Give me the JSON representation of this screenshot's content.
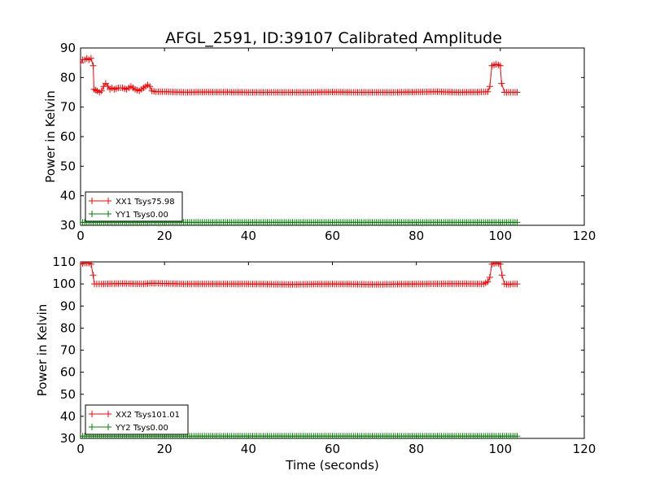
{
  "figure": {
    "title": "AFGL_2591, ID:39107 Calibrated Amplitude"
  },
  "chart_data": [
    {
      "type": "line",
      "title": "AFGL_2591, ID:39107 Calibrated Amplitude",
      "xlabel": "",
      "ylabel": "Power in Kelvin",
      "xlim": [
        0,
        120
      ],
      "ylim": [
        30,
        90
      ],
      "xticks": [
        "0",
        "20",
        "40",
        "60",
        "80",
        "100",
        "120"
      ],
      "yticks": [
        "30",
        "40",
        "50",
        "60",
        "70",
        "80",
        "90"
      ],
      "grid": false,
      "legend_position": "bottom-left",
      "series": [
        {
          "name": "XX1 Tsys75.98",
          "color": "#ff0000",
          "marker": "plus",
          "points": [
            [
              0,
              85
            ],
            [
              0.5,
              86
            ],
            [
              1,
              86
            ],
            [
              1.5,
              86.5
            ],
            [
              2,
              86
            ],
            [
              2.5,
              86.5
            ],
            [
              3,
              84
            ],
            [
              3.2,
              76
            ],
            [
              4,
              75.5
            ],
            [
              4.5,
              75
            ],
            [
              5,
              75.5
            ],
            [
              5.5,
              77
            ],
            [
              6,
              78
            ],
            [
              6.5,
              77
            ],
            [
              7,
              76
            ],
            [
              7.5,
              76.5
            ],
            [
              8,
              76
            ],
            [
              9,
              76.5
            ],
            [
              10,
              76.5
            ],
            [
              11,
              76
            ],
            [
              12,
              77
            ],
            [
              13,
              76
            ],
            [
              14,
              75.5
            ],
            [
              15,
              76.5
            ],
            [
              16,
              77.5
            ],
            [
              16.5,
              77
            ],
            [
              17,
              75.5
            ],
            [
              18,
              75.2
            ],
            [
              20,
              75.2
            ],
            [
              25,
              75
            ],
            [
              30,
              75.1
            ],
            [
              40,
              75
            ],
            [
              50,
              75
            ],
            [
              55,
              75
            ],
            [
              60,
              75.1
            ],
            [
              65,
              75
            ],
            [
              70,
              75
            ],
            [
              75,
              75
            ],
            [
              80,
              75.1
            ],
            [
              85,
              75.2
            ],
            [
              90,
              75
            ],
            [
              95,
              75.1
            ],
            [
              97,
              75.2
            ],
            [
              97.5,
              77
            ],
            [
              98,
              84
            ],
            [
              99,
              84.5
            ],
            [
              100,
              84
            ],
            [
              100.3,
              78
            ],
            [
              101,
              75
            ],
            [
              102,
              75
            ],
            [
              103,
              75
            ],
            [
              104,
              75
            ]
          ]
        },
        {
          "name": "YY1 Tsys0.00",
          "color": "#008000",
          "marker": "plus",
          "points": [
            [
              0,
              31
            ],
            [
              10,
              31
            ],
            [
              20,
              31
            ],
            [
              30,
              31
            ],
            [
              40,
              31
            ],
            [
              50,
              31
            ],
            [
              60,
              31
            ],
            [
              70,
              31
            ],
            [
              80,
              31
            ],
            [
              90,
              31
            ],
            [
              100,
              31
            ],
            [
              104,
              31
            ]
          ]
        }
      ]
    },
    {
      "type": "line",
      "title": "",
      "xlabel": "Time (seconds)",
      "ylabel": "Power in Kelvin",
      "xlim": [
        0,
        120
      ],
      "ylim": [
        30,
        110
      ],
      "xticks": [
        "0",
        "20",
        "40",
        "60",
        "80",
        "100",
        "120"
      ],
      "yticks": [
        "30",
        "40",
        "50",
        "60",
        "70",
        "80",
        "90",
        "100",
        "110"
      ],
      "grid": false,
      "legend_position": "bottom-left",
      "series": [
        {
          "name": "XX2 Tsys101.01",
          "color": "#ff0000",
          "marker": "plus",
          "points": [
            [
              0,
              109
            ],
            [
              1,
              109.5
            ],
            [
              2,
              109.5
            ],
            [
              2.5,
              109
            ],
            [
              3,
              104
            ],
            [
              3.3,
              100
            ],
            [
              5,
              100
            ],
            [
              10,
              100.2
            ],
            [
              15,
              100
            ],
            [
              17,
              100.3
            ],
            [
              20,
              100.2
            ],
            [
              25,
              100
            ],
            [
              30,
              100
            ],
            [
              40,
              100
            ],
            [
              50,
              99.8
            ],
            [
              60,
              100
            ],
            [
              70,
              99.8
            ],
            [
              80,
              100
            ],
            [
              90,
              100.1
            ],
            [
              96,
              100
            ],
            [
              97,
              101
            ],
            [
              97.5,
              103
            ],
            [
              98,
              109
            ],
            [
              99,
              109.5
            ],
            [
              100,
              109
            ],
            [
              100.4,
              104
            ],
            [
              101,
              100
            ],
            [
              102,
              99.8
            ],
            [
              103,
              100
            ],
            [
              104,
              100
            ]
          ]
        },
        {
          "name": "YY2 Tsys0.00",
          "color": "#008000",
          "marker": "plus",
          "points": [
            [
              0,
              31
            ],
            [
              10,
              31
            ],
            [
              20,
              31
            ],
            [
              30,
              31
            ],
            [
              40,
              31
            ],
            [
              50,
              31
            ],
            [
              60,
              31
            ],
            [
              70,
              31
            ],
            [
              80,
              31
            ],
            [
              90,
              31
            ],
            [
              100,
              31
            ],
            [
              104,
              31
            ]
          ]
        }
      ]
    }
  ]
}
